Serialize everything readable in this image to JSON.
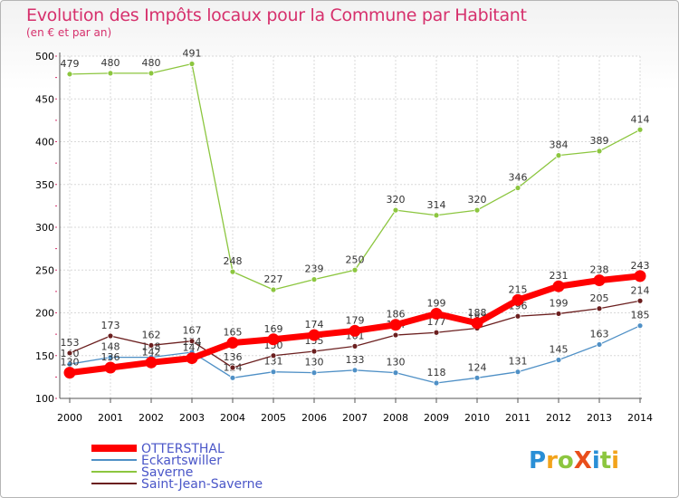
{
  "title": "Evolution des Impôts locaux pour la Commune par Habitant",
  "subtitle": "(en € et par an)",
  "logo": {
    "text": "ProXiti",
    "letters": [
      "P",
      "r",
      "o",
      "X",
      "i",
      "t",
      "i"
    ],
    "colors": [
      "#2a8fd6",
      "#f2a31b",
      "#8cc63f",
      "#e94e1b",
      "#2a8fd6",
      "#8cc63f",
      "#f2a31b"
    ]
  },
  "chart_data": {
    "type": "line",
    "title": "Evolution des Impôts locaux pour la Commune par Habitant",
    "subtitle": "(en € et par an)",
    "x": [
      2000,
      2001,
      2002,
      2003,
      2004,
      2005,
      2006,
      2007,
      2008,
      2009,
      2010,
      2011,
      2012,
      2013,
      2014
    ],
    "ylim": [
      100,
      500
    ],
    "yticks": [
      100,
      150,
      200,
      250,
      300,
      350,
      400,
      450,
      500
    ],
    "grid": true,
    "legend_position": "bottom-left",
    "series": [
      {
        "name": "OTTERSTHAL",
        "color": "#ff0000",
        "values": [
          130,
          136,
          142,
          147,
          165,
          169,
          174,
          179,
          186,
          199,
          188,
          215,
          231,
          238,
          243
        ]
      },
      {
        "name": "Eckartswiller",
        "color": "#4f90c6",
        "values": [
          140,
          148,
          148,
          154,
          124,
          131,
          130,
          133,
          130,
          118,
          124,
          131,
          145,
          163,
          185
        ]
      },
      {
        "name": "Saverne",
        "color": "#8cc63f",
        "values": [
          479,
          480,
          480,
          491,
          248,
          227,
          239,
          250,
          320,
          314,
          320,
          346,
          384,
          389,
          414
        ]
      },
      {
        "name": "Saint-Jean-Saverne",
        "color": "#6b1f1f",
        "values": [
          153,
          173,
          162,
          167,
          136,
          150,
          155,
          161,
          174,
          177,
          182,
          196,
          199,
          205,
          214
        ]
      }
    ]
  }
}
